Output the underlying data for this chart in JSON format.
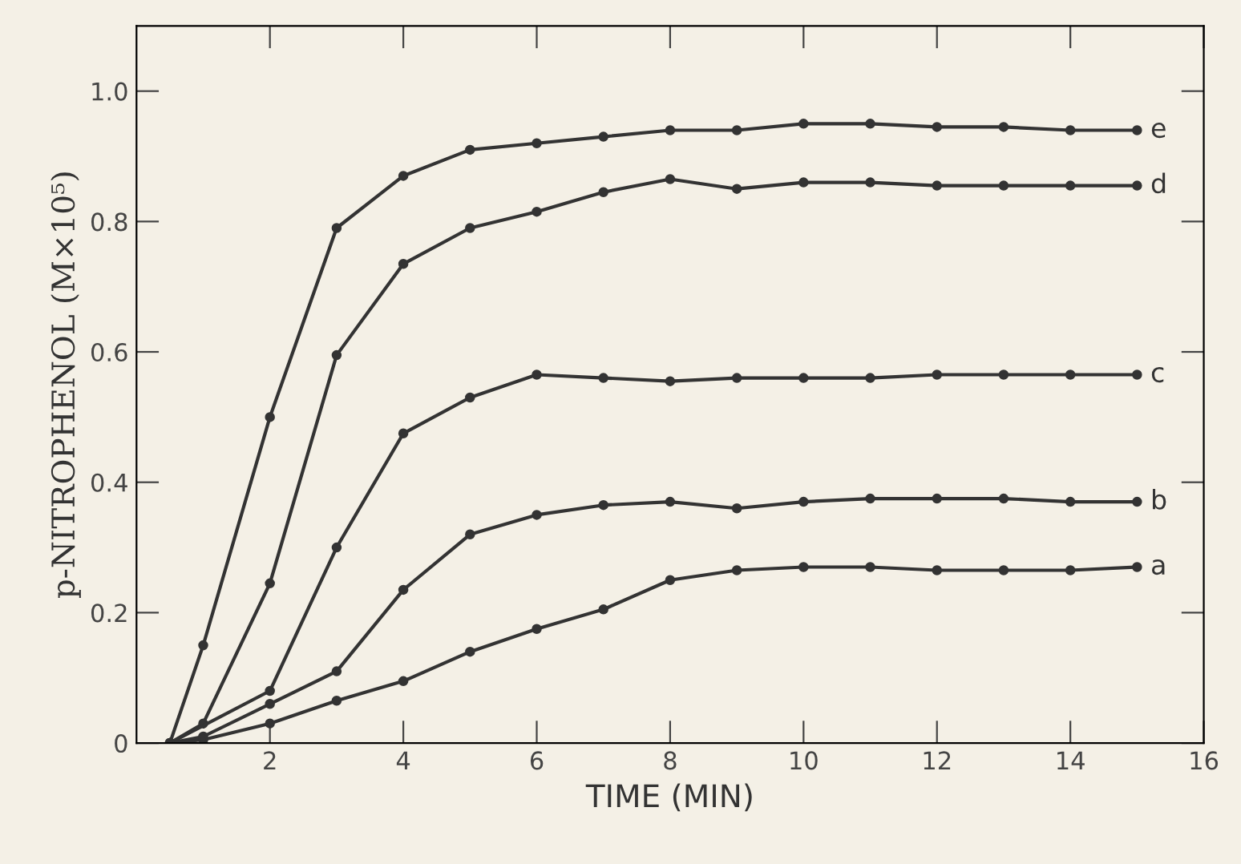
{
  "chart_data": {
    "type": "line",
    "xlabel": "TIME (MIN)",
    "ylabel": "p-NITROPHENOL (M×10⁵)",
    "x": [
      0.5,
      1,
      2,
      3,
      4,
      5,
      6,
      7,
      8,
      9,
      10,
      11,
      12,
      13,
      14,
      15
    ],
    "series": [
      {
        "name": "e",
        "color": "#333333",
        "values": [
          0,
          0.15,
          0.5,
          0.79,
          0.87,
          0.91,
          0.92,
          0.93,
          0.94,
          0.94,
          0.95,
          0.95,
          0.945,
          0.945,
          0.94,
          0.94
        ]
      },
      {
        "name": "d",
        "color": "#333333",
        "values": [
          0,
          0.03,
          0.245,
          0.595,
          0.735,
          0.79,
          0.815,
          0.845,
          0.865,
          0.85,
          0.86,
          0.86,
          0.855,
          0.855,
          0.855,
          0.855
        ]
      },
      {
        "name": "c",
        "color": "#333333",
        "values": [
          0,
          null,
          0.08,
          0.3,
          0.475,
          0.53,
          0.565,
          0.56,
          0.555,
          0.56,
          0.56,
          0.56,
          0.565,
          0.565,
          0.565,
          0.565
        ]
      },
      {
        "name": "b",
        "color": "#333333",
        "values": [
          0,
          0.01,
          0.06,
          0.11,
          0.235,
          0.32,
          0.35,
          0.365,
          0.37,
          0.36,
          0.37,
          0.375,
          0.375,
          0.375,
          0.37,
          0.37
        ]
      },
      {
        "name": "a",
        "color": "#333333",
        "values": [
          0,
          0.005,
          0.03,
          0.065,
          0.095,
          0.14,
          0.175,
          0.205,
          0.25,
          0.265,
          0.27,
          0.27,
          0.265,
          0.265,
          0.265,
          0.27
        ]
      }
    ],
    "xlim": [
      0,
      16
    ],
    "ylim": [
      0,
      1.1
    ],
    "xticks": [
      2,
      4,
      6,
      8,
      10,
      12,
      14,
      16
    ],
    "yticks": [
      0,
      0.2,
      0.4,
      0.6,
      0.8,
      {
        "value": 1,
        "label": "1.0"
      }
    ],
    "marker": "circle",
    "line_style": "solid",
    "grid": false,
    "legend": false
  }
}
